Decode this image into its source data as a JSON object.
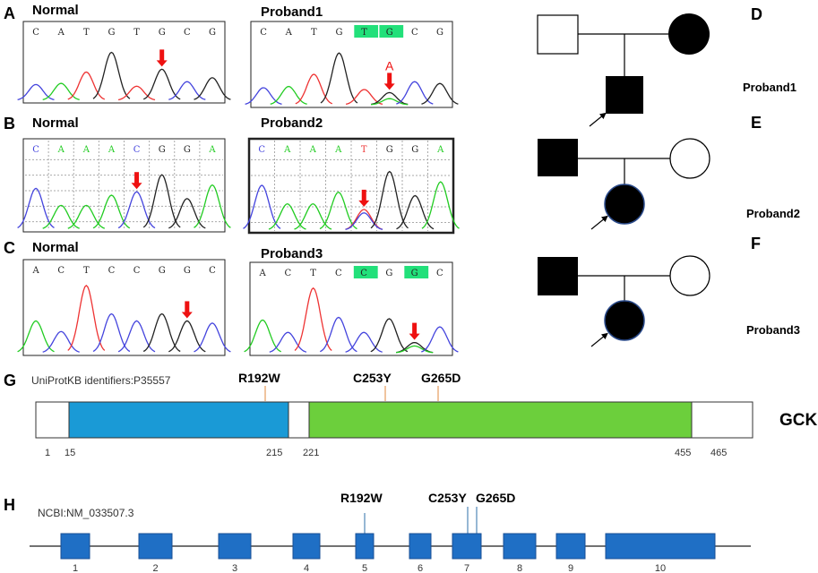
{
  "panels": {
    "A": {
      "label": "A",
      "normal_title": "Normal",
      "proband_title": "Proband1",
      "normal_bases": [
        "C",
        "A",
        "T",
        "G",
        "T",
        "G",
        "C",
        "G"
      ],
      "proband_bases": [
        "C",
        "A",
        "T",
        "G",
        "T",
        "G",
        "C",
        "G"
      ],
      "mutant_base": "A"
    },
    "B": {
      "label": "B",
      "normal_title": "Normal",
      "proband_title": "Proband2",
      "normal_bases": [
        "C",
        "A",
        "A",
        "A",
        "C",
        "G",
        "G",
        "A"
      ],
      "proband_bases": [
        "C",
        "A",
        "A",
        "A",
        "T",
        "G",
        "G",
        "A"
      ]
    },
    "C": {
      "label": "C",
      "normal_title": "Normal",
      "proband_title": "Proband3",
      "normal_bases": [
        "A",
        "C",
        "T",
        "C",
        "C",
        "G",
        "G",
        "C"
      ],
      "proband_bases": [
        "A",
        "C",
        "T",
        "C",
        "C",
        "G",
        "G",
        "C"
      ]
    },
    "D": {
      "label": "D",
      "proband": "Proband1"
    },
    "E": {
      "label": "E",
      "proband": "Proband2"
    },
    "F": {
      "label": "F",
      "proband": "Proband3"
    },
    "G": {
      "label": "G",
      "identifier": "UniProtKB identifiers:P35557",
      "protein": "GCK",
      "mutations": [
        "R192W",
        "C253Y",
        "G265D"
      ],
      "positions": [
        "1",
        "15",
        "215",
        "221",
        "455",
        "465"
      ],
      "domain_colors": {
        "domain1": "#1a9ad6",
        "domain2": "#6ccf3c"
      }
    },
    "H": {
      "label": "H",
      "identifier": "NCBI:NM_033507.3",
      "mutations": [
        "R192W",
        "C253Y",
        "G265D"
      ],
      "exons": [
        "1",
        "2",
        "3",
        "4",
        "5",
        "6",
        "7",
        "8",
        "9",
        "10"
      ],
      "exon_color": "#1f6fc5"
    }
  },
  "base_colors": {
    "A": "#22cc22",
    "C": "#4444dd",
    "G": "#222222",
    "T": "#ee3333"
  },
  "arrow_color": "#ee1111",
  "highlight_color": "#22e07a"
}
